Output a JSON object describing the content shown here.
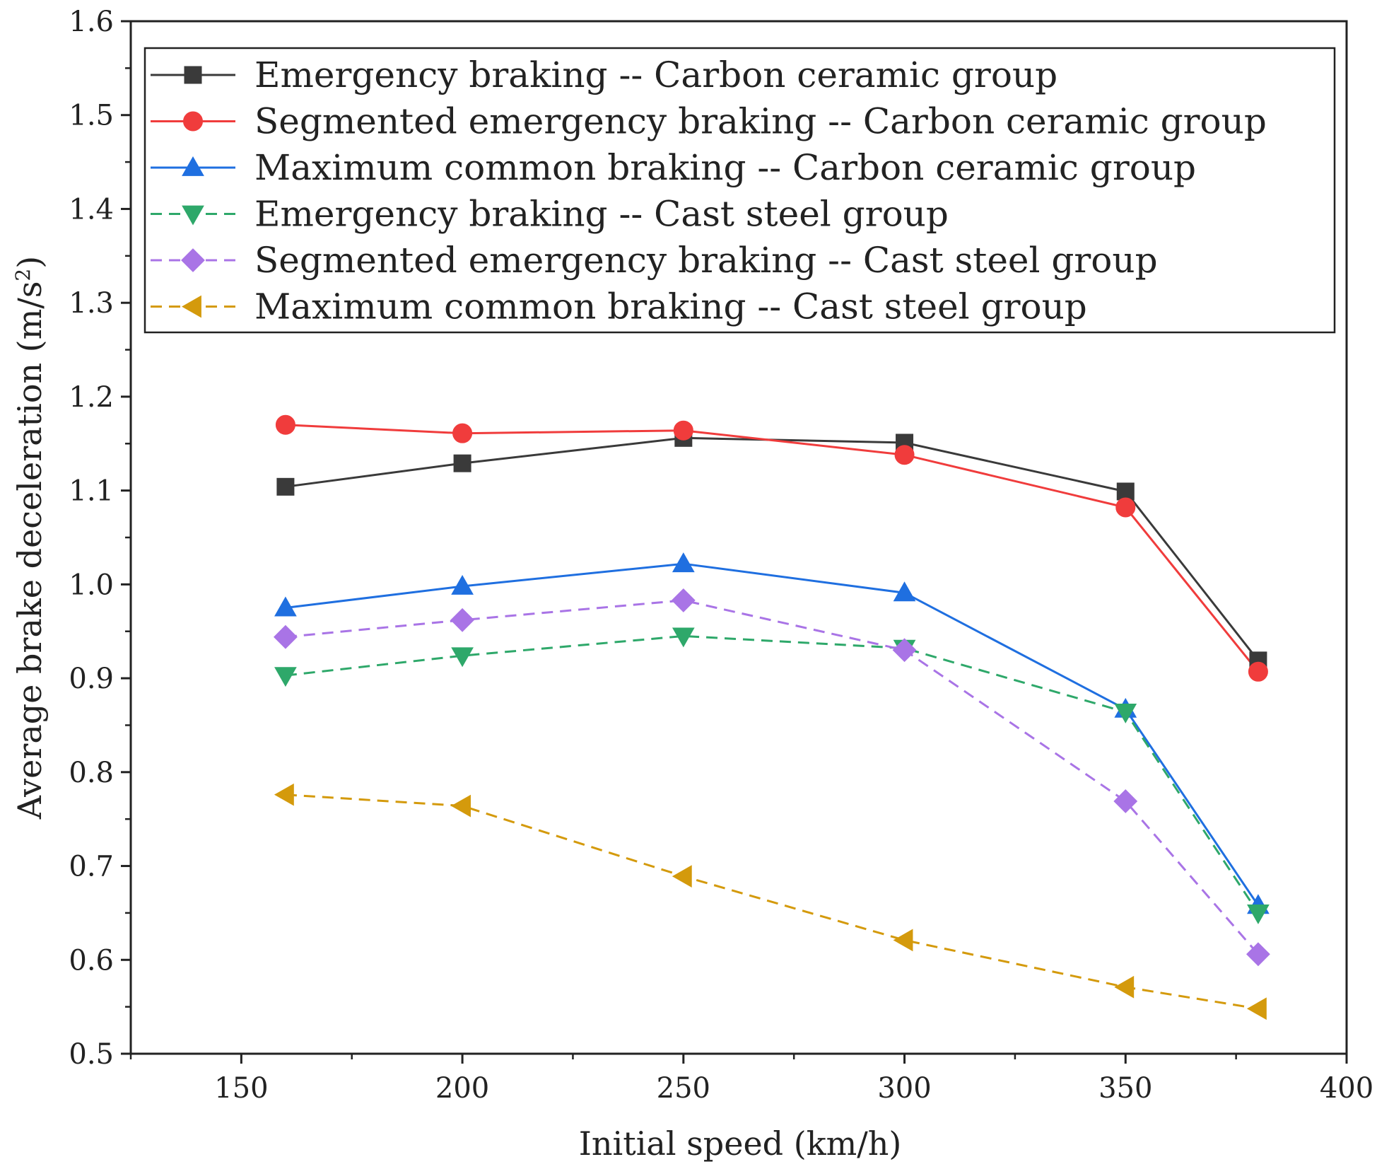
{
  "chart_data": {
    "type": "line",
    "title": "",
    "xlabel": "Initial speed (km/h)",
    "ylabel_main": "Average brake deceleration (m/s",
    "ylabel_sup": "2",
    "ylabel_close": ")",
    "xlim": [
      125,
      400
    ],
    "ylim": [
      0.5,
      1.6
    ],
    "xticks": [
      150,
      200,
      250,
      300,
      350,
      400
    ],
    "xtick_labels": [
      "150",
      "200",
      "250",
      "300",
      "350",
      "400"
    ],
    "yticks": [
      0.5,
      0.6,
      0.7,
      0.8,
      0.9,
      1.0,
      1.1,
      1.2,
      1.3,
      1.4,
      1.5,
      1.6
    ],
    "ytick_labels": [
      "0.5",
      "0.6",
      "0.7",
      "0.8",
      "0.9",
      "1.0",
      "1.1",
      "1.2",
      "1.3",
      "1.4",
      "1.5",
      "1.6"
    ],
    "grid": false,
    "legend_position": "top-left",
    "x": [
      160,
      200,
      250,
      300,
      350,
      380
    ],
    "series": [
      {
        "name": "Emergency braking -- Carbon ceramic group",
        "color": "#3a3a3a",
        "dashed": false,
        "marker": "square",
        "values": [
          1.104,
          1.129,
          1.156,
          1.151,
          1.099,
          0.919
        ]
      },
      {
        "name": "Segmented emergency braking -- Carbon ceramic group",
        "color": "#f03c3c",
        "dashed": false,
        "marker": "circle",
        "values": [
          1.17,
          1.161,
          1.164,
          1.138,
          1.082,
          0.907
        ]
      },
      {
        "name": "Maximum common braking -- Carbon ceramic group",
        "color": "#1f6fe0",
        "dashed": false,
        "marker": "triangle-up",
        "values": [
          0.975,
          0.998,
          1.022,
          0.991,
          0.867,
          0.658
        ]
      },
      {
        "name": "Emergency braking -- Cast steel group",
        "color": "#2ea86a",
        "dashed": true,
        "marker": "triangle-down",
        "values": [
          0.903,
          0.924,
          0.945,
          0.932,
          0.864,
          0.65
        ]
      },
      {
        "name": "Segmented emergency braking -- Cast steel group",
        "color": "#a974e6",
        "dashed": true,
        "marker": "diamond",
        "values": [
          0.944,
          0.962,
          0.983,
          0.93,
          0.769,
          0.606
        ]
      },
      {
        "name": "Maximum common braking -- Cast steel group",
        "color": "#d49a0c",
        "dashed": true,
        "marker": "triangle-left",
        "values": [
          0.776,
          0.764,
          0.689,
          0.621,
          0.571,
          0.548
        ]
      }
    ]
  }
}
